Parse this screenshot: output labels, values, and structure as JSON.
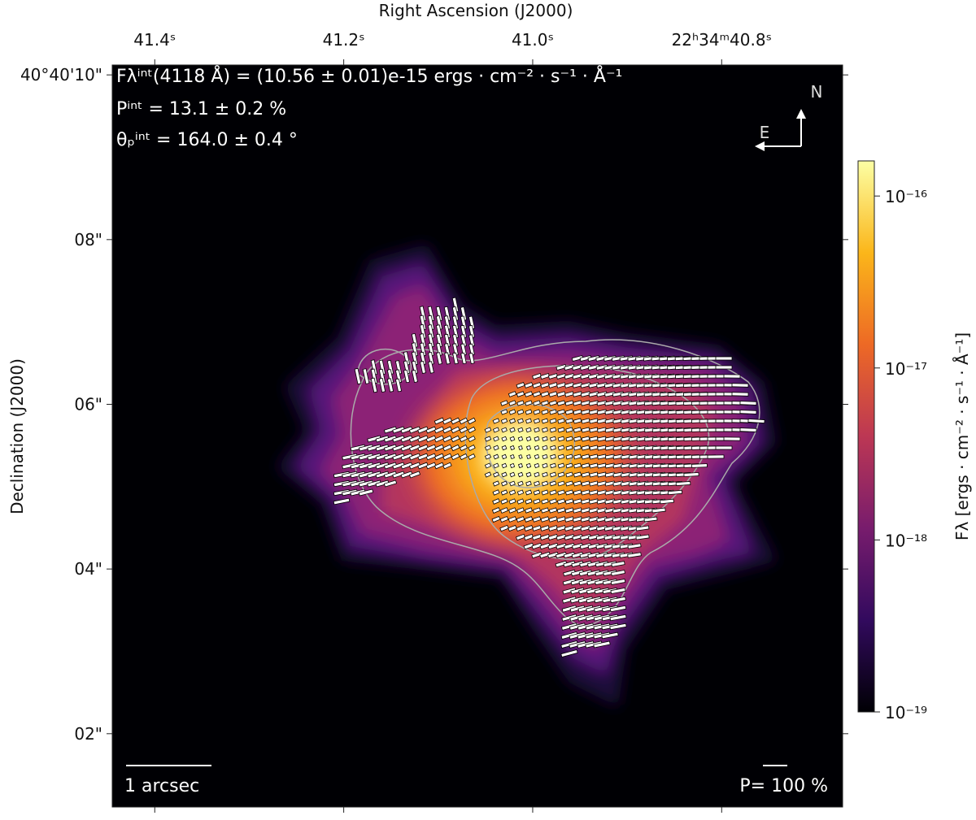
{
  "chart_data": {
    "type": "image",
    "x_label": "Right Ascension (J2000)",
    "y_label": "Declination (J2000)",
    "xlim": [
      41.445,
      40.672
    ],
    "xticks": [
      {
        "value": 41.4,
        "label": "41.4ˢ"
      },
      {
        "value": 41.2,
        "label": "41.2ˢ"
      },
      {
        "value": 41.0,
        "label": "41.0ˢ"
      },
      {
        "value": 40.8,
        "label": "22ʰ34ᵐ40.8ˢ"
      }
    ],
    "ylim": [
      1.11,
      10.12
    ],
    "yticks": [
      {
        "value": 10,
        "label": "40°40'10\""
      },
      {
        "value": 8,
        "label": "08\""
      },
      {
        "value": 6,
        "label": "06\""
      },
      {
        "value": 4,
        "label": "04\""
      },
      {
        "value": 2,
        "label": "02\""
      }
    ],
    "colorbar": {
      "label": "Fλ [ergs · cm⁻² · s⁻¹ · Å⁻¹]",
      "log_scale": true,
      "lim": [
        1e-19,
        1.6e-16
      ],
      "ticks": [
        {
          "value": 1e-16,
          "label": "10⁻¹⁶"
        },
        {
          "value": 1e-17,
          "label": "10⁻¹⁷"
        },
        {
          "value": 1e-18,
          "label": "10⁻¹⁸"
        },
        {
          "value": 1e-19,
          "label": "10⁻¹⁹"
        }
      ],
      "colormap": [
        "#000004",
        "#320a5e",
        "#781c6d",
        "#bc3754",
        "#ed6925",
        "#fbb61a",
        "#fcffa4"
      ]
    },
    "annotations": [
      "Fλⁱⁿᵗ(4118 Å) = (10.56 ± 0.01)e-15 ergs · cm⁻² · s⁻¹ · Å⁻¹",
      "Pⁱⁿᵗ = 13.1 ± 0.2 %",
      "θₚⁱⁿᵗ = 164.0 ± 0.4 °"
    ],
    "scale_bar": "1 arcsec",
    "vector_scale": "P= 100 %",
    "compass": {
      "north": "N",
      "east": "E"
    }
  }
}
